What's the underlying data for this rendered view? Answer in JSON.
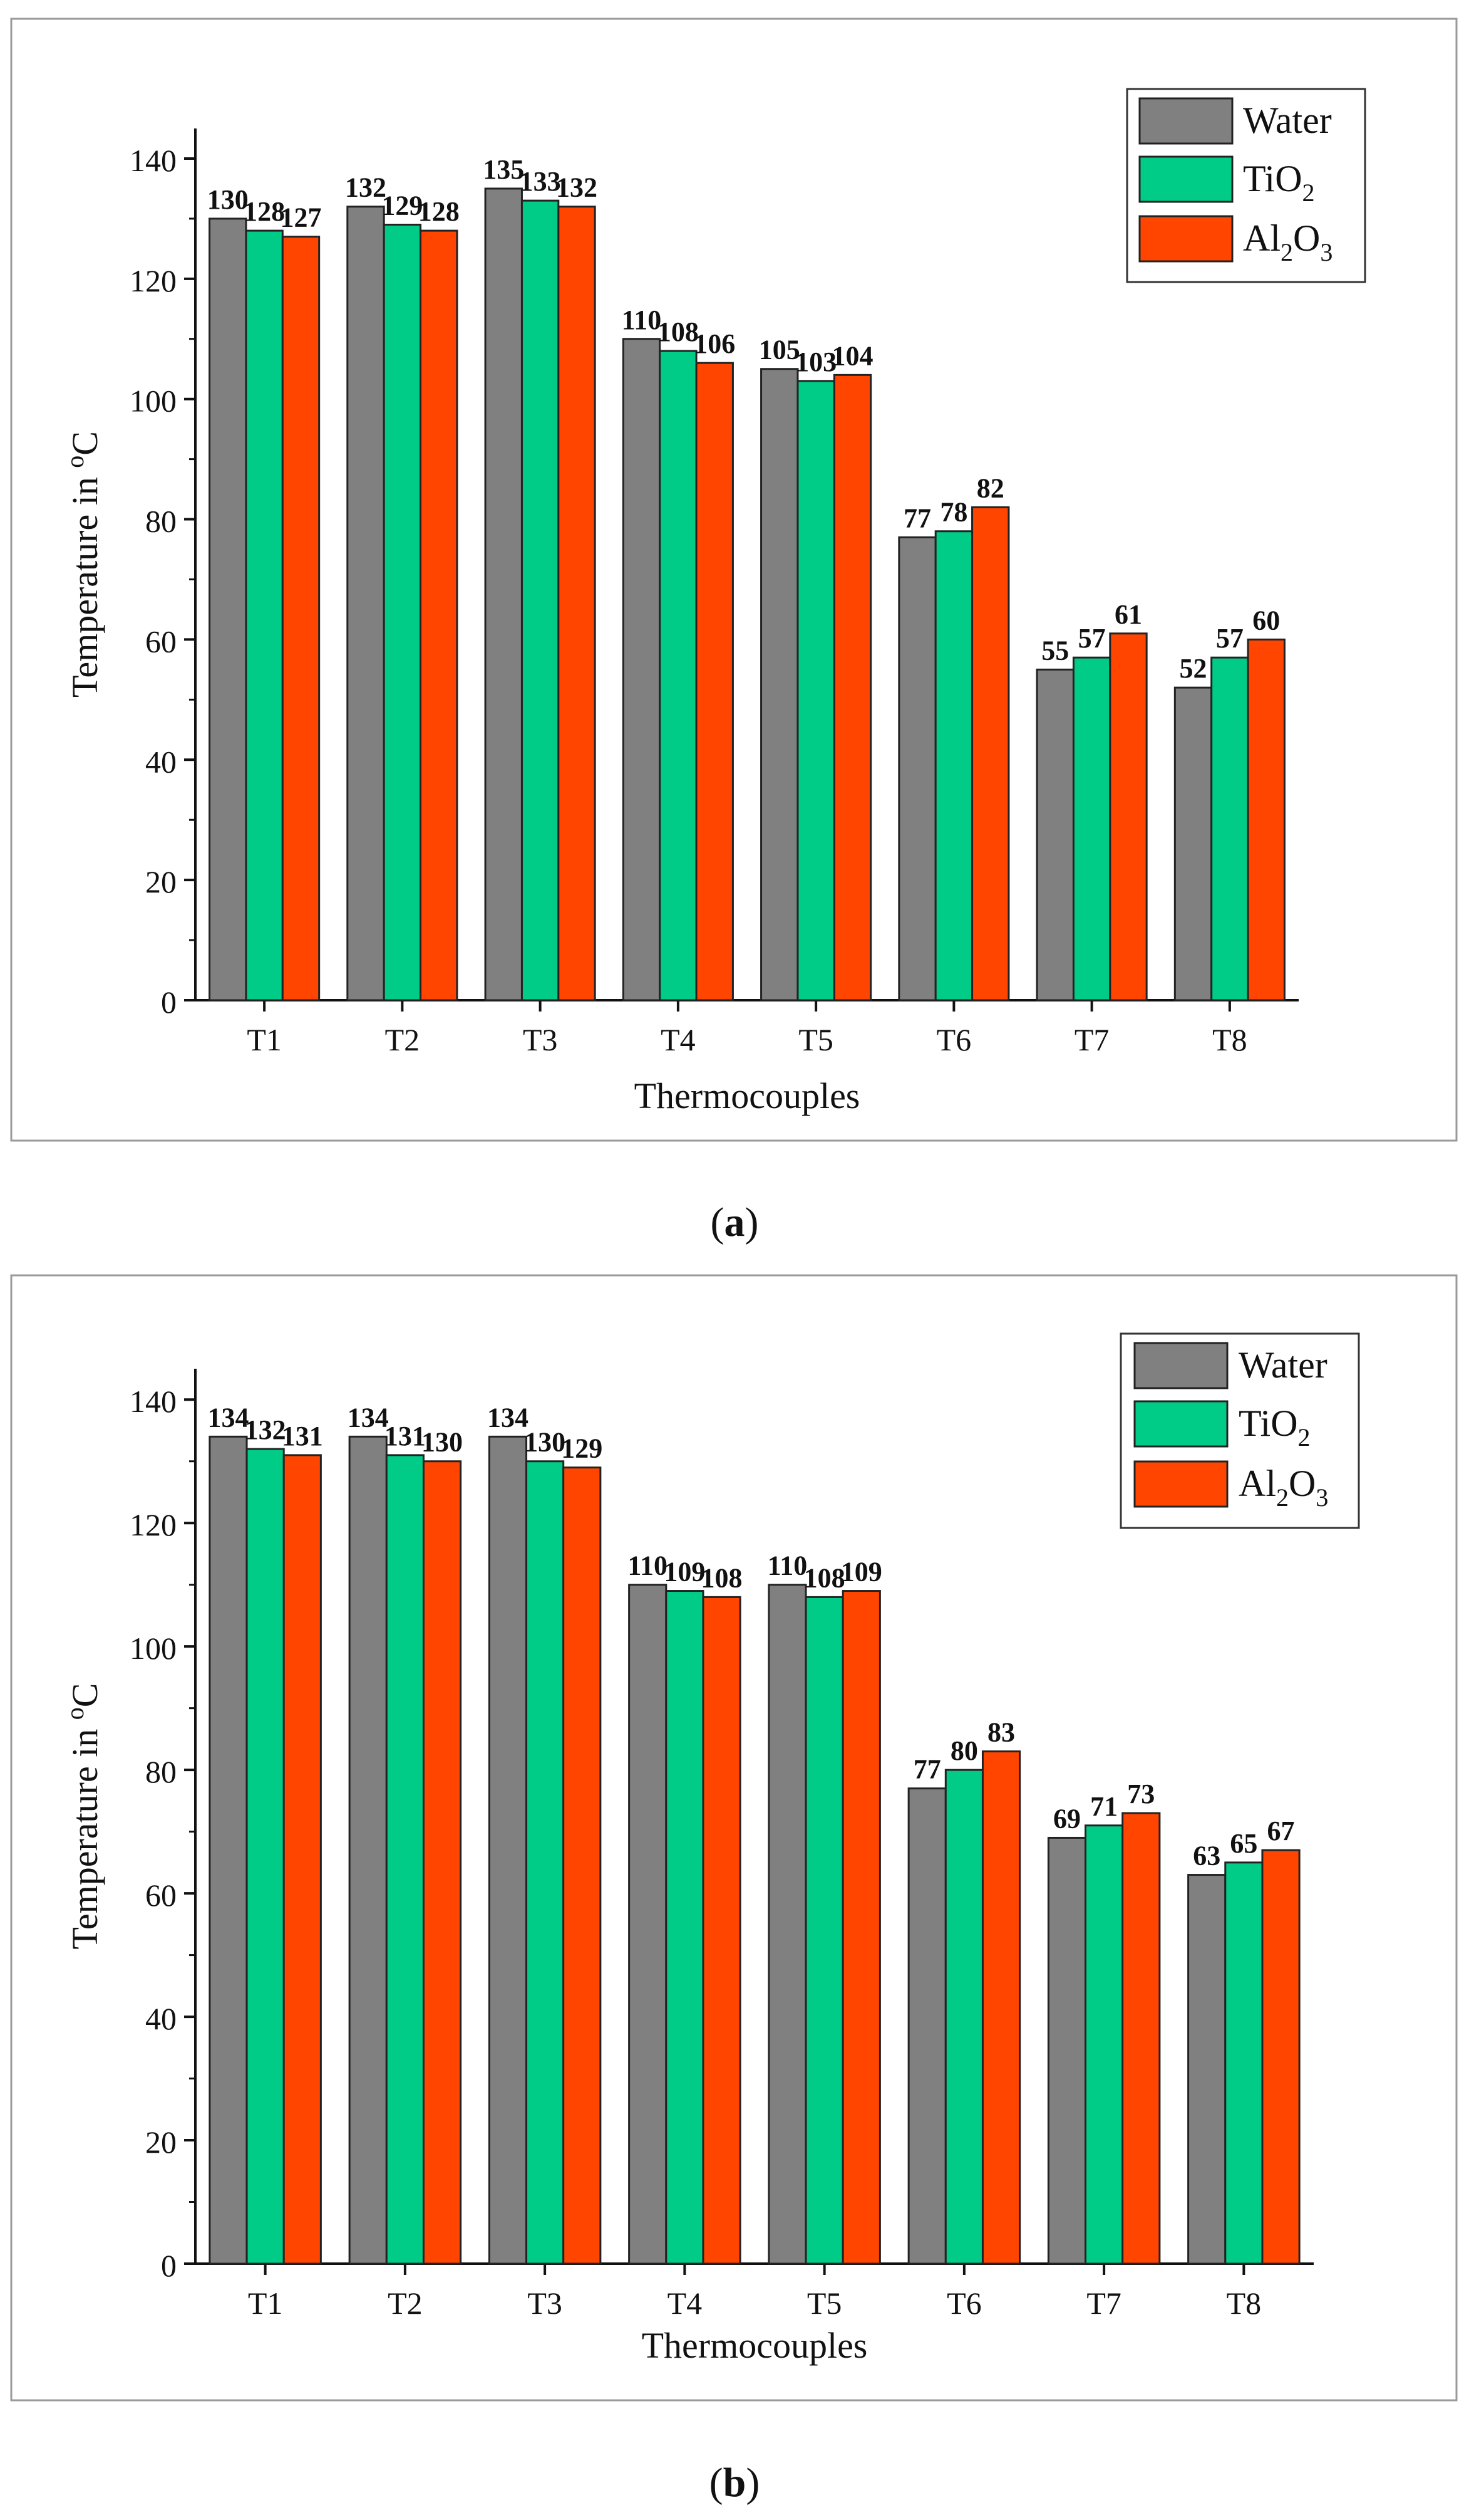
{
  "chart_data": [
    {
      "type": "bar",
      "panel": "a",
      "title": "",
      "xlabel": "Thermocouples",
      "ylabel_main": "Temperature in ",
      "ylabel_sup": "o",
      "ylabel_unit": "C",
      "ylim": [
        0,
        145
      ],
      "yticks": [
        0,
        20,
        40,
        60,
        80,
        100,
        120,
        140
      ],
      "grid": false,
      "legend_position": "top-right",
      "categories": [
        "T1",
        "T2",
        "T3",
        "T4",
        "T5",
        "T6",
        "T7",
        "T8"
      ],
      "series": [
        {
          "name": "Water",
          "color": "#808080",
          "values": [
            130,
            132,
            135,
            110,
            105,
            77,
            55,
            52
          ]
        },
        {
          "name": "TiO2",
          "color": "#00cc88",
          "values": [
            128,
            129,
            133,
            108,
            103,
            78,
            57,
            57
          ]
        },
        {
          "name": "Al2O3",
          "color": "#ff4500",
          "values": [
            127,
            128,
            132,
            106,
            104,
            82,
            61,
            60
          ]
        }
      ]
    },
    {
      "type": "bar",
      "panel": "b",
      "title": "",
      "xlabel": "Thermocouples",
      "ylabel_main": "Temperature in ",
      "ylabel_sup": "o",
      "ylabel_unit": "C",
      "ylim": [
        0,
        145
      ],
      "yticks": [
        0,
        20,
        40,
        60,
        80,
        100,
        120,
        140
      ],
      "grid": false,
      "legend_position": "top-right",
      "categories": [
        "T1",
        "T2",
        "T3",
        "T4",
        "T5",
        "T6",
        "T7",
        "T8"
      ],
      "series": [
        {
          "name": "Water",
          "color": "#808080",
          "values": [
            134,
            134,
            134,
            110,
            110,
            77,
            69,
            63
          ]
        },
        {
          "name": "TiO2",
          "color": "#00cc88",
          "values": [
            132,
            131,
            130,
            109,
            108,
            80,
            71,
            65
          ]
        },
        {
          "name": "Al2O3",
          "color": "#ff4500",
          "values": [
            131,
            130,
            129,
            108,
            109,
            83,
            73,
            67
          ]
        }
      ]
    }
  ],
  "legend": [
    {
      "main": "Water",
      "sub1": "",
      "mid": "",
      "sub2": ""
    },
    {
      "main": "TiO",
      "sub1": "2",
      "mid": "",
      "sub2": ""
    },
    {
      "main": "Al",
      "sub1": "2",
      "mid": "O",
      "sub2": "3"
    }
  ],
  "captions": {
    "a": "a",
    "b": "b"
  }
}
